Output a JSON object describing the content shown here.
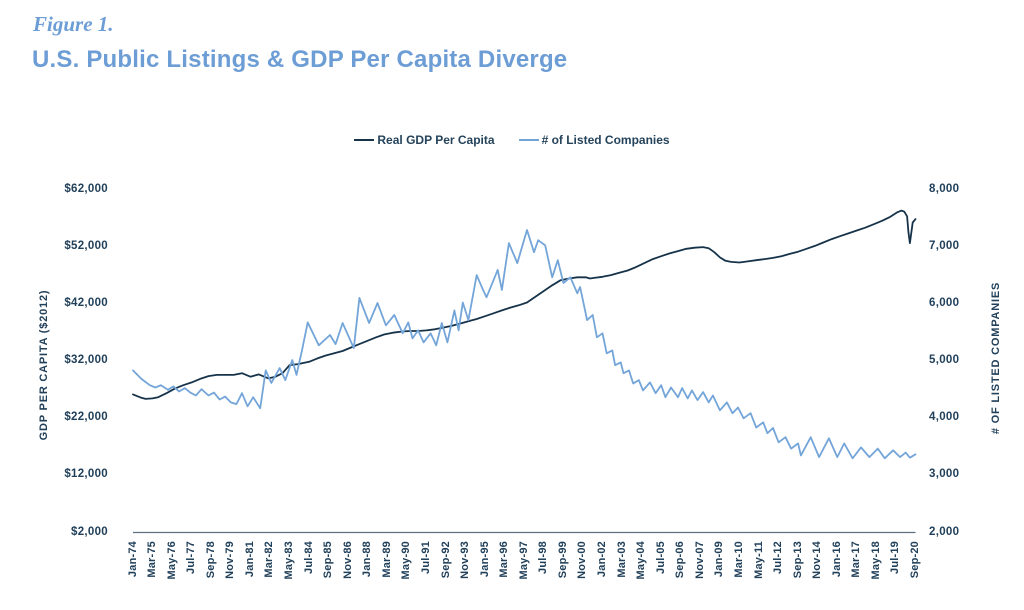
{
  "figure": {
    "label": "Figure 1.",
    "title": "U.S. Public Listings & GDP Per Capita Diverge",
    "title_color": "#6d9dd5"
  },
  "legend": [
    {
      "name": "Real GDP Per Capita",
      "color": "#16334a"
    },
    {
      "name": "# of Listed Companies",
      "color": "#74a5d9"
    }
  ],
  "colors": {
    "axis_line": "#5f6f7d",
    "tick_text": "#21405a"
  },
  "chart_data": {
    "type": "line",
    "title": "U.S. Public Listings & GDP Per Capita Diverge",
    "x_unit": "months since Jan-1974 (x ticks every 14 months)",
    "x_tick_labels": [
      "Jan-74",
      "Mar-75",
      "May-76",
      "Jul-77",
      "Sep-78",
      "Nov-79",
      "Jan-81",
      "Mar-82",
      "May-83",
      "Jul-84",
      "Sep-85",
      "Nov-86",
      "Jan-88",
      "Mar-89",
      "May-90",
      "Jul-91",
      "Sep-92",
      "Nov-93",
      "Jan-95",
      "Mar-96",
      "May-97",
      "Jul-98",
      "Sep-99",
      "Nov-00",
      "Jan-02",
      "Mar-03",
      "May-04",
      "Jul-05",
      "Sep-06",
      "Nov-07",
      "Jan-09",
      "Mar-10",
      "May-11",
      "Jul-12",
      "Sep-13",
      "Nov-14",
      "Jan-16",
      "Mar-17",
      "May-18",
      "Jul-19",
      "Sep-20"
    ],
    "x_tick_month_step": 14,
    "x_month_range": [
      0,
      560
    ],
    "grid": "none",
    "legend_position": "top-center",
    "left_axis": {
      "label": "GDP PER CAPITA ($2012)",
      "ticks": [
        "$62,000",
        "$52,000",
        "$42,000",
        "$32,000",
        "$22,000",
        "$12,000",
        "$2,000"
      ],
      "min": 2000,
      "max": 62000
    },
    "right_axis": {
      "label": "# OF LISTED COMPANIES",
      "ticks": [
        "8,000",
        "7,000",
        "6,000",
        "5,000",
        "4,000",
        "3,000",
        "2,000"
      ],
      "min": 2000,
      "max": 8000
    },
    "series": [
      {
        "name": "Real GDP Per Capita",
        "axis": "left",
        "color": "#16334a",
        "points": [
          [
            0,
            26200
          ],
          [
            6,
            25600
          ],
          [
            9,
            25400
          ],
          [
            14,
            25500
          ],
          [
            18,
            25700
          ],
          [
            24,
            26400
          ],
          [
            30,
            27200
          ],
          [
            36,
            27800
          ],
          [
            42,
            28300
          ],
          [
            48,
            28900
          ],
          [
            54,
            29400
          ],
          [
            60,
            29600
          ],
          [
            66,
            29600
          ],
          [
            72,
            29600
          ],
          [
            78,
            29900
          ],
          [
            84,
            29300
          ],
          [
            90,
            29700
          ],
          [
            97,
            29000
          ],
          [
            102,
            29300
          ],
          [
            107,
            29900
          ],
          [
            112,
            31300
          ],
          [
            118,
            31500
          ],
          [
            126,
            31900
          ],
          [
            132,
            32500
          ],
          [
            138,
            33000
          ],
          [
            144,
            33400
          ],
          [
            150,
            33800
          ],
          [
            156,
            34400
          ],
          [
            162,
            35000
          ],
          [
            168,
            35600
          ],
          [
            174,
            36200
          ],
          [
            180,
            36700
          ],
          [
            186,
            37000
          ],
          [
            192,
            37200
          ],
          [
            198,
            37300
          ],
          [
            204,
            37300
          ],
          [
            210,
            37400
          ],
          [
            216,
            37600
          ],
          [
            222,
            37900
          ],
          [
            228,
            38200
          ],
          [
            234,
            38600
          ],
          [
            240,
            39000
          ],
          [
            246,
            39400
          ],
          [
            252,
            39900
          ],
          [
            258,
            40400
          ],
          [
            264,
            40900
          ],
          [
            270,
            41400
          ],
          [
            276,
            41800
          ],
          [
            282,
            42300
          ],
          [
            288,
            43300
          ],
          [
            294,
            44300
          ],
          [
            300,
            45300
          ],
          [
            306,
            46200
          ],
          [
            312,
            46500
          ],
          [
            318,
            46700
          ],
          [
            324,
            46700
          ],
          [
            327,
            46500
          ],
          [
            330,
            46600
          ],
          [
            336,
            46800
          ],
          [
            342,
            47100
          ],
          [
            348,
            47500
          ],
          [
            354,
            47900
          ],
          [
            360,
            48500
          ],
          [
            366,
            49200
          ],
          [
            372,
            49900
          ],
          [
            378,
            50400
          ],
          [
            384,
            50900
          ],
          [
            390,
            51300
          ],
          [
            396,
            51700
          ],
          [
            402,
            51900
          ],
          [
            408,
            52000
          ],
          [
            412,
            51800
          ],
          [
            416,
            51100
          ],
          [
            420,
            50200
          ],
          [
            424,
            49600
          ],
          [
            428,
            49400
          ],
          [
            434,
            49300
          ],
          [
            440,
            49500
          ],
          [
            446,
            49700
          ],
          [
            452,
            49900
          ],
          [
            458,
            50100
          ],
          [
            464,
            50400
          ],
          [
            470,
            50800
          ],
          [
            476,
            51200
          ],
          [
            482,
            51700
          ],
          [
            488,
            52200
          ],
          [
            494,
            52800
          ],
          [
            500,
            53400
          ],
          [
            506,
            53900
          ],
          [
            512,
            54400
          ],
          [
            518,
            54900
          ],
          [
            524,
            55400
          ],
          [
            530,
            56000
          ],
          [
            536,
            56600
          ],
          [
            542,
            57300
          ],
          [
            547,
            58100
          ],
          [
            550,
            58400
          ],
          [
            552,
            58200
          ],
          [
            554,
            57400
          ],
          [
            555,
            54500
          ],
          [
            556,
            52700
          ],
          [
            558,
            56300
          ],
          [
            560,
            56900
          ]
        ]
      },
      {
        "name": "# of Listed Companies",
        "axis": "right",
        "color": "#74a5d9",
        "points": [
          [
            0,
            4840
          ],
          [
            6,
            4690
          ],
          [
            12,
            4580
          ],
          [
            16,
            4540
          ],
          [
            20,
            4580
          ],
          [
            25,
            4500
          ],
          [
            29,
            4560
          ],
          [
            33,
            4470
          ],
          [
            37,
            4530
          ],
          [
            41,
            4450
          ],
          [
            45,
            4400
          ],
          [
            49,
            4510
          ],
          [
            54,
            4400
          ],
          [
            58,
            4450
          ],
          [
            62,
            4330
          ],
          [
            66,
            4380
          ],
          [
            70,
            4280
          ],
          [
            74,
            4250
          ],
          [
            78,
            4440
          ],
          [
            82,
            4210
          ],
          [
            86,
            4370
          ],
          [
            91,
            4175
          ],
          [
            95,
            4840
          ],
          [
            99,
            4620
          ],
          [
            105,
            4880
          ],
          [
            109,
            4670
          ],
          [
            114,
            5020
          ],
          [
            117,
            4760
          ],
          [
            121,
            5200
          ],
          [
            125,
            5680
          ],
          [
            133,
            5280
          ],
          [
            141,
            5460
          ],
          [
            145,
            5300
          ],
          [
            150,
            5670
          ],
          [
            158,
            5230
          ],
          [
            162,
            6110
          ],
          [
            169,
            5670
          ],
          [
            175,
            6020
          ],
          [
            181,
            5630
          ],
          [
            187,
            5810
          ],
          [
            193,
            5490
          ],
          [
            197,
            5680
          ],
          [
            200,
            5400
          ],
          [
            204,
            5540
          ],
          [
            208,
            5330
          ],
          [
            213,
            5490
          ],
          [
            217,
            5280
          ],
          [
            221,
            5670
          ],
          [
            225,
            5330
          ],
          [
            230,
            5890
          ],
          [
            233,
            5540
          ],
          [
            236,
            6030
          ],
          [
            240,
            5720
          ],
          [
            246,
            6510
          ],
          [
            250,
            6280
          ],
          [
            253,
            6120
          ],
          [
            258,
            6420
          ],
          [
            261,
            6600
          ],
          [
            264,
            6250
          ],
          [
            269,
            7070
          ],
          [
            275,
            6720
          ],
          [
            282,
            7300
          ],
          [
            287,
            6910
          ],
          [
            290,
            7120
          ],
          [
            295,
            7030
          ],
          [
            300,
            6470
          ],
          [
            304,
            6770
          ],
          [
            308,
            6370
          ],
          [
            313,
            6470
          ],
          [
            318,
            6190
          ],
          [
            320,
            6300
          ],
          [
            325,
            5720
          ],
          [
            329,
            5810
          ],
          [
            332,
            5420
          ],
          [
            336,
            5490
          ],
          [
            339,
            5140
          ],
          [
            343,
            5190
          ],
          [
            345,
            4930
          ],
          [
            349,
            4980
          ],
          [
            351,
            4790
          ],
          [
            355,
            4840
          ],
          [
            358,
            4610
          ],
          [
            362,
            4670
          ],
          [
            365,
            4490
          ],
          [
            370,
            4630
          ],
          [
            374,
            4440
          ],
          [
            378,
            4580
          ],
          [
            381,
            4370
          ],
          [
            385,
            4540
          ],
          [
            390,
            4370
          ],
          [
            393,
            4530
          ],
          [
            397,
            4350
          ],
          [
            400,
            4490
          ],
          [
            404,
            4320
          ],
          [
            408,
            4460
          ],
          [
            412,
            4280
          ],
          [
            415,
            4400
          ],
          [
            420,
            4140
          ],
          [
            425,
            4280
          ],
          [
            429,
            4090
          ],
          [
            433,
            4190
          ],
          [
            437,
            4000
          ],
          [
            442,
            4090
          ],
          [
            446,
            3840
          ],
          [
            451,
            3930
          ],
          [
            454,
            3740
          ],
          [
            458,
            3830
          ],
          [
            462,
            3580
          ],
          [
            467,
            3670
          ],
          [
            471,
            3470
          ],
          [
            476,
            3560
          ],
          [
            478,
            3350
          ],
          [
            485,
            3670
          ],
          [
            491,
            3320
          ],
          [
            498,
            3650
          ],
          [
            504,
            3320
          ],
          [
            509,
            3560
          ],
          [
            515,
            3300
          ],
          [
            521,
            3490
          ],
          [
            527,
            3320
          ],
          [
            533,
            3470
          ],
          [
            538,
            3300
          ],
          [
            544,
            3440
          ],
          [
            549,
            3320
          ],
          [
            553,
            3400
          ],
          [
            556,
            3310
          ],
          [
            560,
            3370
          ]
        ]
      }
    ]
  }
}
